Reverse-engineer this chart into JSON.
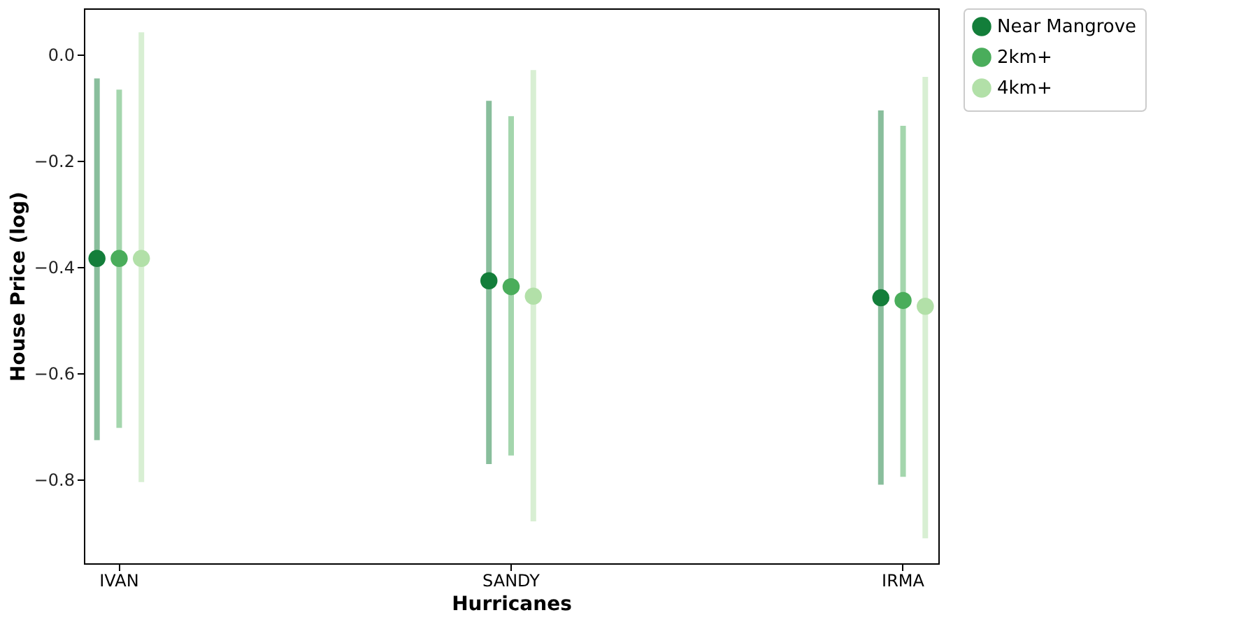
{
  "chart_data": {
    "type": "scatter",
    "xlabel": "Hurricanes",
    "ylabel": "House Price (log)",
    "categories": [
      "IVAN",
      "SANDY",
      "IRMA"
    ],
    "series": [
      {
        "name": "Near Mangrove",
        "color": "#137e3a",
        "values": [
          -0.384,
          -0.426,
          -0.458
        ],
        "errors": [
          [
            -0.726,
            -0.045
          ],
          [
            -0.771,
            -0.087
          ],
          [
            -0.81,
            -0.105
          ]
        ]
      },
      {
        "name": "2km+",
        "color": "#4aad5b",
        "values": [
          -0.384,
          -0.437,
          -0.463
        ],
        "errors": [
          [
            -0.703,
            -0.066
          ],
          [
            -0.755,
            -0.116
          ],
          [
            -0.795,
            -0.134
          ]
        ]
      },
      {
        "name": "4km+",
        "color": "#b2e0a8",
        "values": [
          -0.384,
          -0.455,
          -0.474
        ],
        "errors": [
          [
            -0.805,
            0.042
          ],
          [
            -0.879,
            -0.029
          ],
          [
            -0.911,
            -0.042
          ]
        ]
      }
    ],
    "ylim": [
      -0.958,
      0.087
    ],
    "yticks": [
      -0.8,
      -0.6,
      -0.4,
      -0.2,
      {
        "value": 0,
        "label": "0.0"
      }
    ],
    "grid": false,
    "legend": "top right",
    "marker": "circle"
  }
}
